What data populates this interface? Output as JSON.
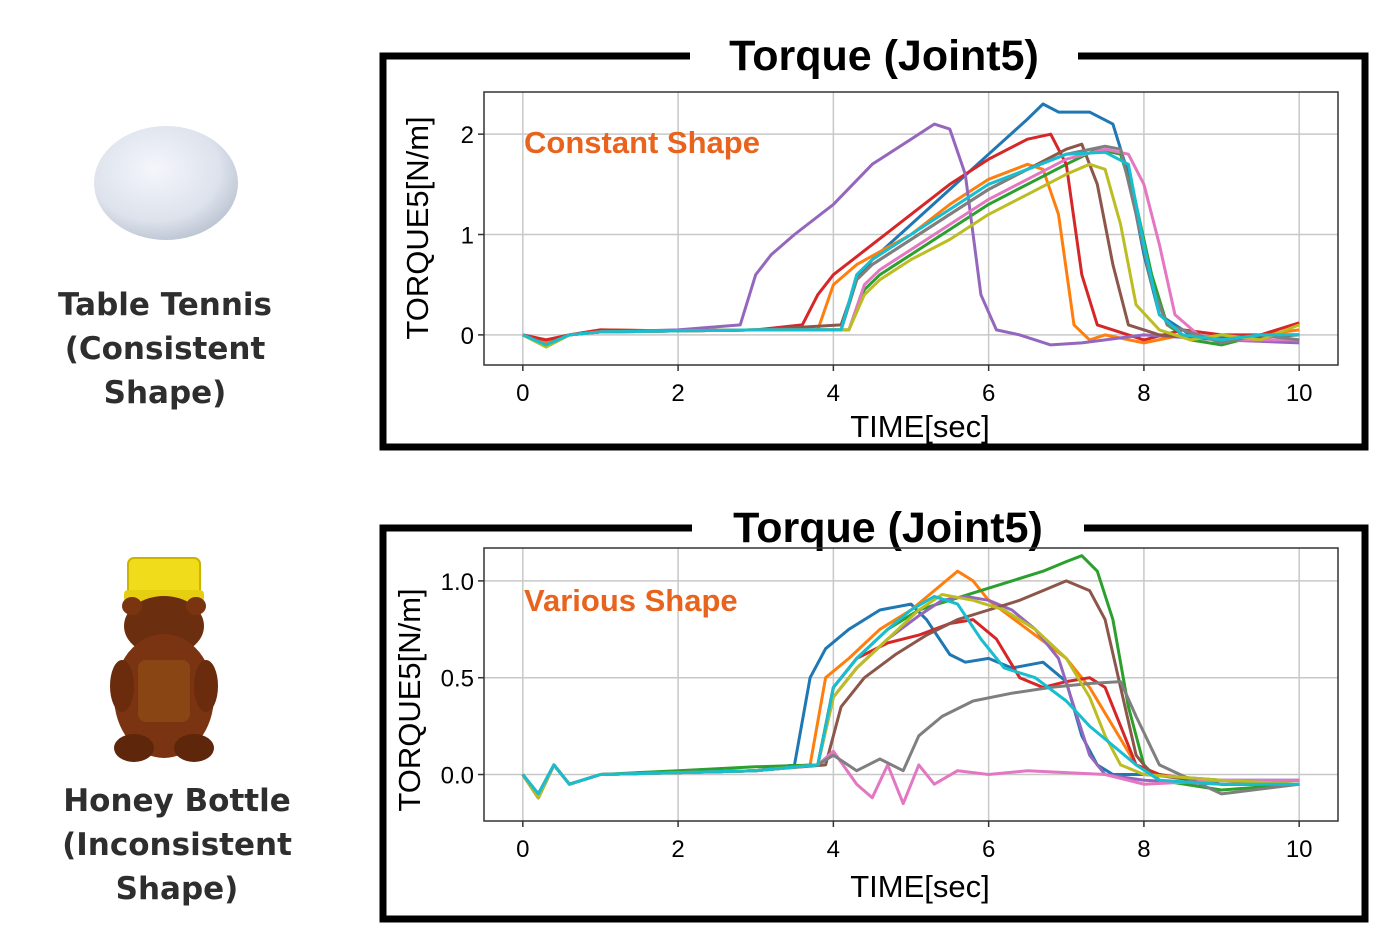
{
  "objects": [
    {
      "name_line1": "Table Tennis",
      "name_line2": "(Consistent Shape)",
      "icon": "table-tennis-ball"
    },
    {
      "name_line1": "Honey Bottle",
      "name_line2": "(Inconsistent Shape)",
      "icon": "honey-bear-bottle"
    }
  ],
  "colors": {
    "annotation": "#e8641e",
    "frame": "#000000",
    "grid": "#c8c8c8",
    "series": [
      "#1f77b4",
      "#ff7f0e",
      "#2ca02c",
      "#d62728",
      "#9467bd",
      "#8c564b",
      "#e377c2",
      "#7f7f7f",
      "#bcbd22",
      "#17becf"
    ]
  },
  "chart_data": [
    {
      "type": "line",
      "title": "Torque (Joint5)",
      "annotation": "Constant Shape",
      "xlabel": "TIME[sec]",
      "ylabel": "TORQUE5[N/m]",
      "xlim": [
        -0.5,
        10.5
      ],
      "ylim": [
        -0.3,
        2.42
      ],
      "xticks": [
        0,
        2,
        4,
        6,
        8,
        10
      ],
      "xtick_labels": [
        "0",
        "2",
        "4",
        "6",
        "8",
        "10"
      ],
      "yticks": [
        0,
        1,
        2
      ],
      "ytick_labels": [
        "0",
        "1",
        "2"
      ],
      "grid": true,
      "series": [
        {
          "color": "#1f77b4",
          "x": [
            0,
            0.3,
            0.6,
            1,
            2,
            3,
            4.1,
            4.3,
            4.5,
            5,
            5.5,
            6,
            6.5,
            6.7,
            6.9,
            7.3,
            7.6,
            7.8,
            8.0,
            8.2,
            8.6,
            9,
            9.5,
            10
          ],
          "y": [
            0,
            -0.1,
            0,
            0.03,
            0.04,
            0.05,
            0.05,
            0.55,
            0.75,
            1.1,
            1.45,
            1.8,
            2.15,
            2.3,
            2.22,
            2.22,
            2.1,
            1.6,
            0.8,
            0.2,
            0,
            -0.03,
            0,
            0
          ]
        },
        {
          "color": "#ff7f0e",
          "x": [
            0,
            0.3,
            0.6,
            1,
            2,
            3,
            3.8,
            4.0,
            4.3,
            5,
            5.5,
            6,
            6.5,
            6.7,
            6.9,
            7.1,
            7.3,
            7.5,
            8,
            8.5,
            9,
            9.5,
            10
          ],
          "y": [
            0,
            -0.08,
            0,
            0.05,
            0.04,
            0.05,
            0.05,
            0.5,
            0.7,
            1.0,
            1.3,
            1.55,
            1.7,
            1.65,
            1.2,
            0.1,
            -0.05,
            0,
            -0.08,
            0,
            -0.05,
            0,
            0.05
          ]
        },
        {
          "color": "#2ca02c",
          "x": [
            0,
            0.3,
            0.6,
            1,
            2,
            3,
            4.2,
            4.4,
            4.6,
            5,
            5.5,
            6,
            6.5,
            7,
            7.4,
            7.7,
            7.9,
            8.1,
            8.3,
            8.6,
            9,
            9.5,
            10
          ],
          "y": [
            0,
            -0.12,
            0,
            0.03,
            0.04,
            0.05,
            0.05,
            0.45,
            0.6,
            0.8,
            1.05,
            1.3,
            1.5,
            1.7,
            1.85,
            1.8,
            1.3,
            0.6,
            0.1,
            -0.05,
            -0.1,
            0,
            0
          ]
        },
        {
          "color": "#d62728",
          "x": [
            0,
            0.3,
            0.6,
            1,
            2,
            3,
            3.6,
            3.8,
            4.0,
            4.5,
            5,
            5.5,
            6,
            6.5,
            6.8,
            7.0,
            7.2,
            7.4,
            7.6,
            8,
            8.5,
            9,
            9.5,
            10
          ],
          "y": [
            0,
            -0.05,
            0,
            0.05,
            0.04,
            0.05,
            0.1,
            0.4,
            0.6,
            0.9,
            1.2,
            1.5,
            1.75,
            1.95,
            2.0,
            1.7,
            0.6,
            0.1,
            0.05,
            -0.05,
            0.05,
            0,
            0,
            0.12
          ]
        },
        {
          "color": "#9467bd",
          "x": [
            0,
            0.3,
            0.6,
            1,
            2,
            2.8,
            3.0,
            3.2,
            3.5,
            4,
            4.5,
            5,
            5.3,
            5.5,
            5.7,
            5.9,
            6.1,
            6.4,
            6.8,
            7.2,
            8,
            9,
            10
          ],
          "y": [
            0,
            -0.1,
            0,
            0.03,
            0.05,
            0.1,
            0.6,
            0.8,
            1.0,
            1.3,
            1.7,
            1.95,
            2.1,
            2.05,
            1.6,
            0.4,
            0.05,
            0,
            -0.1,
            -0.08,
            0,
            -0.05,
            -0.08
          ]
        },
        {
          "color": "#8c564b",
          "x": [
            0,
            0.3,
            0.6,
            1,
            2,
            3,
            4.1,
            4.3,
            4.5,
            5,
            5.5,
            6,
            6.5,
            7,
            7.2,
            7.4,
            7.6,
            7.8,
            8.2,
            9,
            10
          ],
          "y": [
            0,
            -0.1,
            0,
            0.03,
            0.04,
            0.05,
            0.1,
            0.55,
            0.7,
            0.95,
            1.2,
            1.45,
            1.65,
            1.85,
            1.9,
            1.5,
            0.7,
            0.1,
            0,
            -0.05,
            0
          ]
        },
        {
          "color": "#e377c2",
          "x": [
            0,
            0.3,
            0.6,
            1,
            2,
            3,
            4.2,
            4.4,
            4.6,
            5,
            5.5,
            6,
            6.5,
            7,
            7.5,
            7.8,
            8.0,
            8.2,
            8.4,
            8.7,
            9,
            9.5,
            10
          ],
          "y": [
            0,
            -0.1,
            0,
            0.03,
            0.04,
            0.05,
            0.05,
            0.5,
            0.65,
            0.85,
            1.1,
            1.35,
            1.55,
            1.75,
            1.85,
            1.8,
            1.5,
            0.9,
            0.2,
            0,
            -0.05,
            -0.05,
            -0.05
          ]
        },
        {
          "color": "#7f7f7f",
          "x": [
            0,
            0.3,
            0.6,
            1,
            2,
            3,
            4.1,
            4.3,
            4.5,
            5,
            5.5,
            6,
            6.5,
            7,
            7.5,
            7.7,
            7.9,
            8.1,
            8.3,
            8.7,
            9,
            9.5,
            10
          ],
          "y": [
            0,
            -0.1,
            0,
            0.03,
            0.04,
            0.05,
            0.05,
            0.55,
            0.7,
            0.95,
            1.2,
            1.45,
            1.65,
            1.8,
            1.88,
            1.85,
            1.2,
            0.5,
            0.1,
            0,
            -0.08,
            0,
            -0.05
          ]
        },
        {
          "color": "#bcbd22",
          "x": [
            0,
            0.3,
            0.6,
            1,
            2,
            3,
            4.2,
            4.4,
            4.6,
            5,
            5.5,
            6,
            6.5,
            7,
            7.3,
            7.5,
            7.7,
            7.9,
            8.2,
            8.6,
            9,
            9.5,
            10
          ],
          "y": [
            0,
            -0.12,
            0,
            0.03,
            0.04,
            0.05,
            0.05,
            0.4,
            0.55,
            0.75,
            0.95,
            1.2,
            1.4,
            1.6,
            1.7,
            1.65,
            1.1,
            0.3,
            0.05,
            -0.05,
            0,
            -0.05,
            0.1
          ]
        },
        {
          "color": "#17becf",
          "x": [
            0,
            0.3,
            0.6,
            1,
            2,
            3,
            4.1,
            4.3,
            4.5,
            5,
            5.5,
            6,
            6.5,
            7,
            7.5,
            7.8,
            8.0,
            8.2,
            8.5,
            9,
            9.5,
            10
          ],
          "y": [
            0,
            -0.1,
            0,
            0.03,
            0.04,
            0.05,
            0.05,
            0.6,
            0.75,
            1.0,
            1.25,
            1.5,
            1.65,
            1.8,
            1.82,
            1.7,
            0.9,
            0.2,
            0,
            -0.05,
            0,
            0
          ]
        }
      ]
    },
    {
      "type": "line",
      "title": "Torque (Joint5)",
      "annotation": "Various Shape",
      "xlabel": "TIME[sec]",
      "ylabel": "TORQUE5[N/m]",
      "xlim": [
        -0.5,
        10.5
      ],
      "ylim": [
        -0.24,
        1.17
      ],
      "xticks": [
        0,
        2,
        4,
        6,
        8,
        10
      ],
      "xtick_labels": [
        "0",
        "2",
        "4",
        "6",
        "8",
        "10"
      ],
      "yticks": [
        0,
        0.5,
        1
      ],
      "ytick_labels": [
        "0.0",
        "0.5",
        "1.0"
      ],
      "grid": true,
      "series": [
        {
          "color": "#1f77b4",
          "x": [
            0,
            0.2,
            0.4,
            0.6,
            1,
            2,
            3,
            3.5,
            3.7,
            3.9,
            4.2,
            4.6,
            5.0,
            5.2,
            5.5,
            5.7,
            6.0,
            6.3,
            6.7,
            7.0,
            7.2,
            7.4,
            7.6,
            8,
            9,
            10
          ],
          "y": [
            0,
            -0.1,
            0.05,
            -0.05,
            0,
            0.01,
            0.02,
            0.05,
            0.5,
            0.65,
            0.75,
            0.85,
            0.88,
            0.8,
            0.62,
            0.58,
            0.6,
            0.55,
            0.58,
            0.48,
            0.2,
            0.05,
            0,
            0,
            -0.03,
            -0.03
          ]
        },
        {
          "color": "#ff7f0e",
          "x": [
            0,
            0.2,
            0.4,
            0.6,
            1,
            2,
            3,
            3.7,
            3.9,
            4.2,
            4.6,
            5.0,
            5.3,
            5.6,
            5.8,
            6.0,
            6.5,
            7.0,
            7.3,
            7.6,
            7.9,
            8.2,
            9,
            10
          ],
          "y": [
            0,
            -0.12,
            0.05,
            -0.05,
            0,
            0.01,
            0.02,
            0.05,
            0.5,
            0.6,
            0.75,
            0.85,
            0.95,
            1.05,
            1.0,
            0.9,
            0.75,
            0.6,
            0.45,
            0.25,
            0.05,
            0,
            -0.05,
            -0.03
          ]
        },
        {
          "color": "#2ca02c",
          "x": [
            0,
            0.2,
            0.4,
            0.6,
            1,
            2,
            3,
            3.8,
            4.0,
            4.3,
            4.7,
            5.1,
            5.5,
            5.9,
            6.3,
            6.7,
            7.0,
            7.2,
            7.4,
            7.6,
            7.8,
            8.0,
            8.2,
            9,
            10
          ],
          "y": [
            0,
            -0.12,
            0.05,
            -0.05,
            0,
            0.02,
            0.04,
            0.05,
            0.45,
            0.6,
            0.75,
            0.85,
            0.9,
            0.95,
            1.0,
            1.05,
            1.1,
            1.13,
            1.05,
            0.8,
            0.35,
            0.05,
            -0.03,
            -0.08,
            -0.05
          ]
        },
        {
          "color": "#d62728",
          "x": [
            0,
            0.2,
            0.4,
            0.6,
            1,
            2,
            3,
            3.8,
            4.0,
            4.3,
            4.7,
            5.1,
            5.5,
            5.8,
            6.1,
            6.4,
            6.7,
            7.0,
            7.3,
            7.5,
            7.7,
            7.9,
            8.2,
            9,
            10
          ],
          "y": [
            0,
            -0.12,
            0.05,
            -0.05,
            0,
            0.01,
            0.02,
            0.05,
            0.45,
            0.6,
            0.68,
            0.72,
            0.78,
            0.8,
            0.7,
            0.5,
            0.45,
            0.48,
            0.5,
            0.45,
            0.25,
            0.05,
            0,
            -0.05,
            -0.05
          ]
        },
        {
          "color": "#9467bd",
          "x": [
            0,
            0.2,
            0.4,
            0.6,
            1,
            2,
            3,
            3.8,
            4.0,
            4.3,
            4.7,
            5.1,
            5.4,
            5.7,
            6.0,
            6.3,
            6.6,
            6.9,
            7.1,
            7.3,
            7.5,
            8,
            9,
            10
          ],
          "y": [
            0,
            -0.12,
            0.05,
            -0.05,
            0,
            0.01,
            0.02,
            0.05,
            0.4,
            0.55,
            0.7,
            0.82,
            0.9,
            0.92,
            0.9,
            0.85,
            0.75,
            0.6,
            0.35,
            0.1,
            0,
            -0.03,
            -0.05,
            -0.05
          ]
        },
        {
          "color": "#8c564b",
          "x": [
            0,
            0.2,
            0.4,
            0.6,
            1,
            2,
            3,
            3.9,
            4.1,
            4.4,
            4.8,
            5.2,
            5.6,
            6.0,
            6.4,
            6.7,
            7.0,
            7.3,
            7.5,
            7.7,
            7.9,
            8.1,
            9,
            10
          ],
          "y": [
            0,
            -0.12,
            0.05,
            -0.05,
            0,
            0.01,
            0.02,
            0.05,
            0.35,
            0.5,
            0.62,
            0.72,
            0.8,
            0.85,
            0.9,
            0.95,
            1.0,
            0.95,
            0.8,
            0.45,
            0.1,
            0,
            -0.05,
            -0.05
          ]
        },
        {
          "color": "#e377c2",
          "x": [
            0,
            0.2,
            0.4,
            0.6,
            1,
            2,
            3,
            3.8,
            4.0,
            4.3,
            4.5,
            4.7,
            4.9,
            5.1,
            5.3,
            5.6,
            6,
            6.5,
            7,
            7.5,
            8,
            9,
            10
          ],
          "y": [
            0,
            -0.1,
            0.05,
            -0.05,
            0,
            0.01,
            0.02,
            0.05,
            0.12,
            -0.05,
            -0.12,
            0.05,
            -0.15,
            0.05,
            -0.05,
            0.02,
            0.0,
            0.02,
            0.01,
            0.0,
            -0.05,
            -0.03,
            -0.03
          ]
        },
        {
          "color": "#7f7f7f",
          "x": [
            0,
            0.2,
            0.4,
            0.6,
            1,
            2,
            3,
            3.8,
            4.0,
            4.3,
            4.6,
            4.9,
            5.1,
            5.4,
            5.8,
            6.3,
            6.8,
            7.3,
            7.7,
            7.9,
            8.2,
            9,
            10
          ],
          "y": [
            0,
            -0.1,
            0.05,
            -0.05,
            0,
            0.01,
            0.02,
            0.05,
            0.1,
            0.02,
            0.08,
            0.02,
            0.2,
            0.3,
            0.38,
            0.42,
            0.45,
            0.47,
            0.48,
            0.3,
            0.05,
            -0.1,
            -0.05
          ]
        },
        {
          "color": "#bcbd22",
          "x": [
            0,
            0.2,
            0.4,
            0.6,
            1,
            2,
            3,
            3.8,
            4.0,
            4.3,
            4.7,
            5.1,
            5.4,
            5.8,
            6.2,
            6.6,
            7.0,
            7.3,
            7.5,
            7.7,
            8.0,
            9,
            10
          ],
          "y": [
            0,
            -0.12,
            0.05,
            -0.05,
            0,
            0.01,
            0.02,
            0.05,
            0.4,
            0.55,
            0.7,
            0.85,
            0.93,
            0.9,
            0.85,
            0.75,
            0.6,
            0.4,
            0.2,
            0.05,
            0,
            -0.03,
            -0.05
          ]
        },
        {
          "color": "#17becf",
          "x": [
            0,
            0.2,
            0.4,
            0.6,
            1,
            2,
            3,
            3.8,
            4.0,
            4.3,
            4.7,
            5.0,
            5.3,
            5.6,
            5.9,
            6.2,
            6.6,
            7.0,
            7.3,
            7.6,
            7.9,
            8.2,
            9,
            10
          ],
          "y": [
            0,
            -0.1,
            0.05,
            -0.05,
            0,
            0.01,
            0.02,
            0.05,
            0.45,
            0.6,
            0.75,
            0.85,
            0.92,
            0.88,
            0.7,
            0.55,
            0.5,
            0.38,
            0.25,
            0.15,
            0.05,
            -0.03,
            -0.05,
            -0.05
          ]
        }
      ]
    }
  ]
}
